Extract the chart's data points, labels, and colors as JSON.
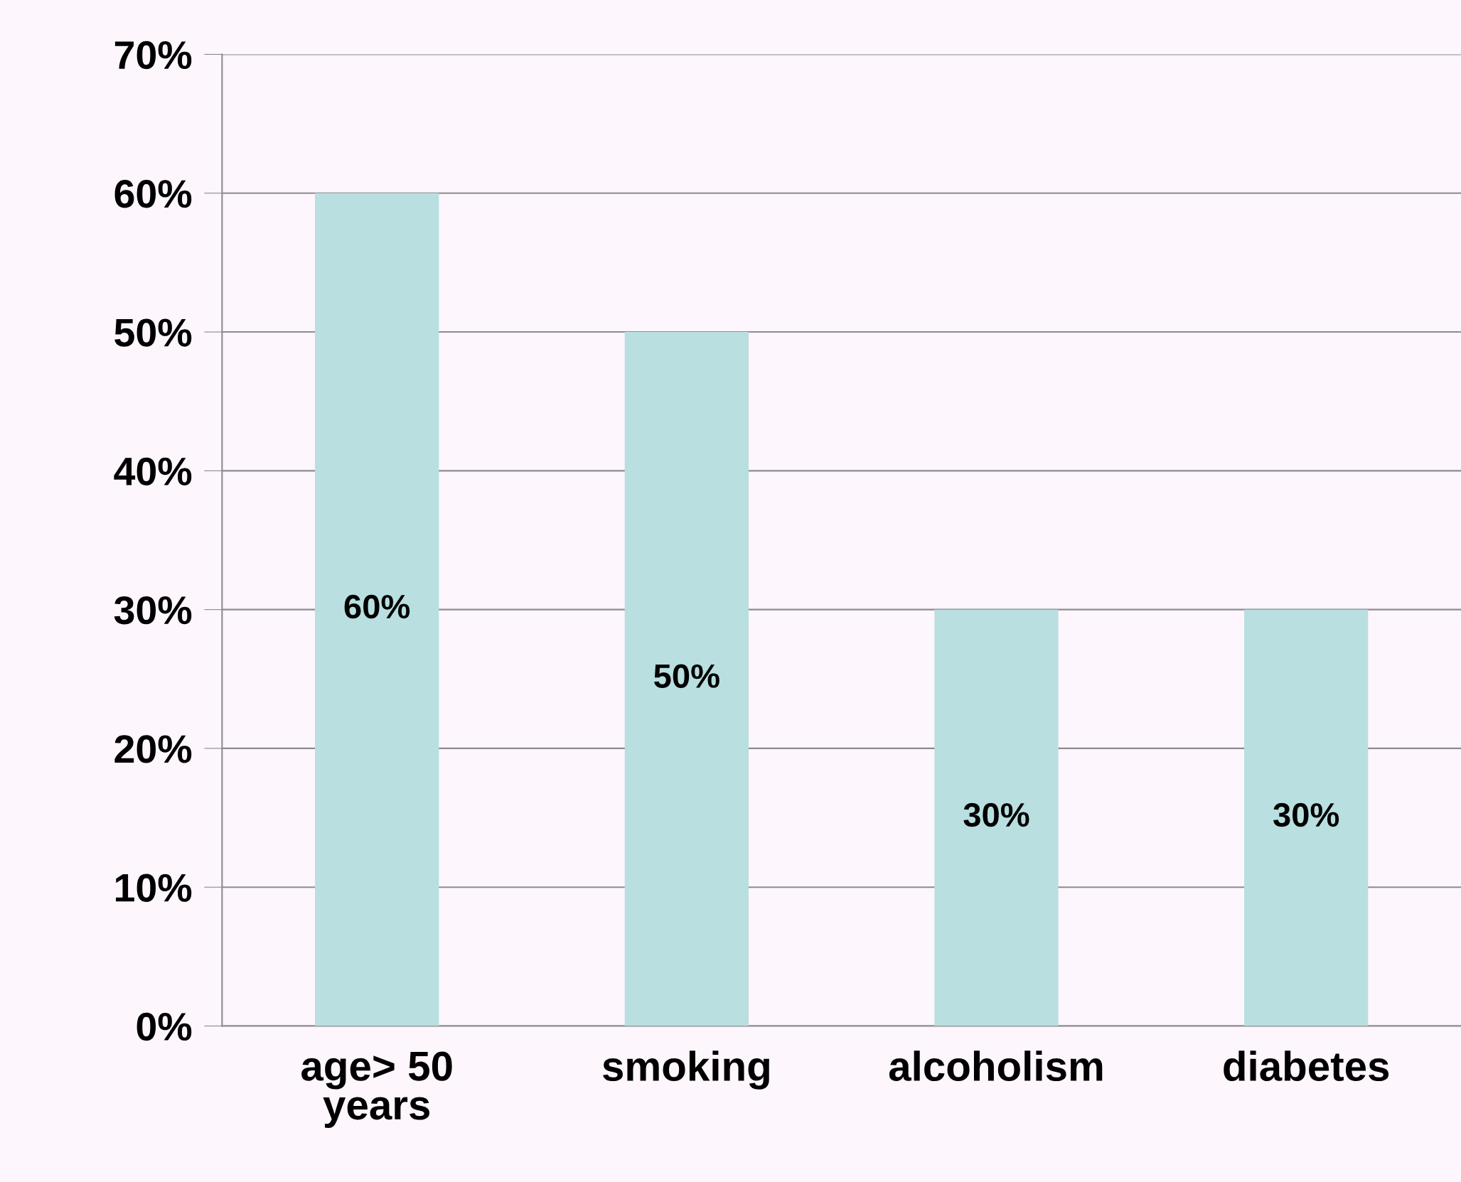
{
  "chart_data": {
    "type": "bar",
    "categories": [
      "age> 50\nyears",
      "smoking",
      "alcoholism",
      "diabetes"
    ],
    "values": [
      60,
      50,
      30,
      30
    ],
    "color": "#b9dfe0",
    "value_labels": [
      "60%",
      "50%",
      "30%",
      "30%"
    ],
    "ylim": [
      0,
      70
    ],
    "yticks": [
      {
        "value": 0,
        "label": "0%"
      },
      {
        "value": 10,
        "label": "10%"
      },
      {
        "value": 20,
        "label": "20%"
      },
      {
        "value": 30,
        "label": "30%"
      },
      {
        "value": 40,
        "label": "40%"
      },
      {
        "value": 50,
        "label": "50%"
      },
      {
        "value": 60,
        "label": "60%"
      },
      {
        "value": 70,
        "label": "70%"
      }
    ],
    "grid": "y"
  }
}
